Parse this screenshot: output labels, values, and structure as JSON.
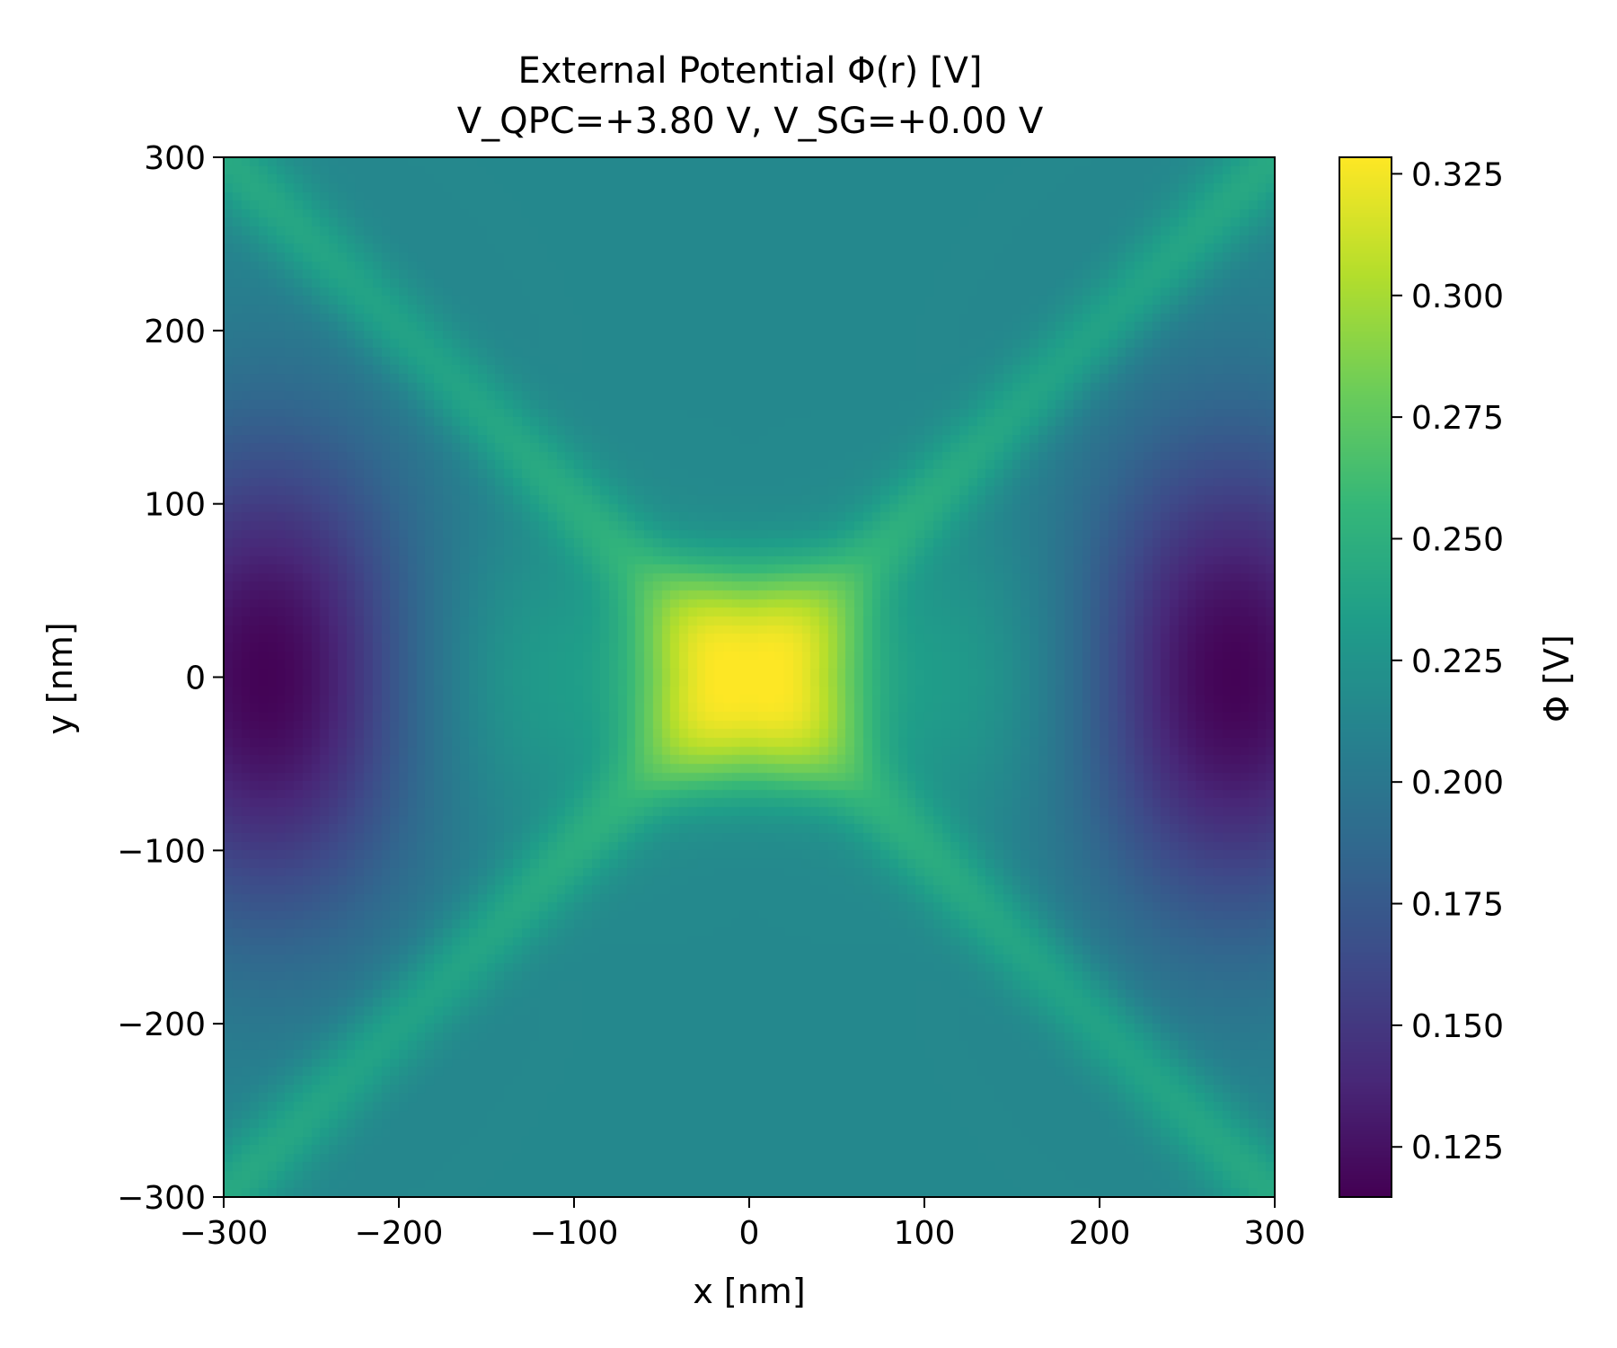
{
  "chart_data": {
    "type": "heatmap",
    "title_line1": "External Potential Φ(r) [V]",
    "title_line2": "V_QPC=+3.80 V, V_SG=+0.00 V",
    "xlabel": "x [nm]",
    "ylabel": "y [nm]",
    "xlim": [
      -300,
      300
    ],
    "ylim": [
      -300,
      300
    ],
    "x_ticks": [
      {
        "value": -300,
        "label": "−300"
      },
      {
        "value": -200,
        "label": "−200"
      },
      {
        "value": -100,
        "label": "−100"
      },
      {
        "value": 0,
        "label": "0"
      },
      {
        "value": 100,
        "label": "100"
      },
      {
        "value": 200,
        "label": "200"
      },
      {
        "value": 300,
        "label": "300"
      }
    ],
    "y_ticks": [
      {
        "value": 300,
        "label": "300"
      },
      {
        "value": 200,
        "label": "200"
      },
      {
        "value": 100,
        "label": "100"
      },
      {
        "value": 0,
        "label": "0"
      },
      {
        "value": -100,
        "label": "−100"
      },
      {
        "value": -200,
        "label": "−200"
      },
      {
        "value": -300,
        "label": "−300"
      }
    ],
    "colorbar": {
      "label": "Φ [V]",
      "colormap": "viridis",
      "range": [
        0.1147,
        0.3284
      ],
      "ticks": [
        {
          "value": 0.125,
          "label": "0.125"
        },
        {
          "value": 0.15,
          "label": "0.150"
        },
        {
          "value": 0.175,
          "label": "0.175"
        },
        {
          "value": 0.2,
          "label": "0.200"
        },
        {
          "value": 0.225,
          "label": "0.225"
        },
        {
          "value": 0.25,
          "label": "0.250"
        },
        {
          "value": 0.275,
          "label": "0.275"
        },
        {
          "value": 0.3,
          "label": "0.300"
        },
        {
          "value": 0.325,
          "label": "0.325"
        }
      ]
    },
    "z_samples": [
      {
        "x": 0,
        "y": 0,
        "z": 0.328
      },
      {
        "x": -270,
        "y": 0,
        "z": 0.116
      },
      {
        "x": 270,
        "y": 0,
        "z": 0.116
      },
      {
        "x": 0,
        "y": 280,
        "z": 0.23
      },
      {
        "x": 0,
        "y": -280,
        "z": 0.23
      },
      {
        "x": -290,
        "y": -290,
        "z": 0.255
      },
      {
        "x": 290,
        "y": 290,
        "z": 0.255
      },
      {
        "x": -50,
        "y": 0,
        "z": 0.3
      },
      {
        "x": -100,
        "y": 0,
        "z": 0.21
      },
      {
        "x": -110,
        "y": 110,
        "z": 0.27
      },
      {
        "x": 0,
        "y": 150,
        "z": 0.235
      }
    ]
  }
}
